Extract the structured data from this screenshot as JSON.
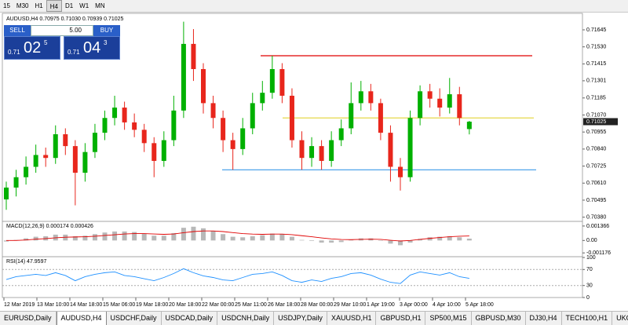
{
  "toolbar": {
    "timeframes": [
      "15",
      "M30",
      "H1",
      "H4",
      "D1",
      "W1",
      "MN"
    ],
    "active_index": 3
  },
  "trade_panel": {
    "sell": "SELL",
    "buy": "BUY",
    "volume": "5.00",
    "bid": {
      "big": "0.71",
      "pips": "02",
      "point": "5"
    },
    "ask": {
      "big": "0.71",
      "pips": "04",
      "point": "3"
    }
  },
  "chart_data": [
    {
      "type": "candlestick",
      "title": "AUDUSD,H4 0.70975 0.71030 0.70939 0.71025",
      "open": [
        0.705,
        0.7058,
        0.7065,
        0.7072,
        0.708,
        0.7078,
        0.7094,
        0.7086,
        0.7068,
        0.7082,
        0.7095,
        0.7105,
        0.7112,
        0.7102,
        0.7097,
        0.7088,
        0.7076,
        0.709,
        0.711,
        0.7155,
        0.7138,
        0.7115,
        0.7105,
        0.709,
        0.7084,
        0.7098,
        0.7115,
        0.7122,
        0.7138,
        0.712,
        0.709,
        0.7078,
        0.7086,
        0.7076,
        0.709,
        0.7098,
        0.7115,
        0.7123,
        0.7115,
        0.7095,
        0.7072,
        0.7065,
        0.7105,
        0.7123,
        0.7118,
        0.7112,
        0.7121,
        0.70975
      ],
      "high": [
        0.7062,
        0.707,
        0.7079,
        0.7087,
        0.7085,
        0.71,
        0.7098,
        0.709,
        0.7088,
        0.7101,
        0.711,
        0.712,
        0.7116,
        0.7108,
        0.7101,
        0.7092,
        0.7096,
        0.712,
        0.717,
        0.7165,
        0.7142,
        0.712,
        0.711,
        0.7095,
        0.7105,
        0.7122,
        0.713,
        0.7147,
        0.7142,
        0.7125,
        0.7096,
        0.7092,
        0.709,
        0.7096,
        0.7104,
        0.7129,
        0.713,
        0.7128,
        0.7118,
        0.71,
        0.7078,
        0.711,
        0.7127,
        0.7128,
        0.7125,
        0.7132,
        0.7126,
        0.7103
      ],
      "low": [
        0.7043,
        0.7052,
        0.706,
        0.7068,
        0.7072,
        0.7074,
        0.708,
        0.7046,
        0.7062,
        0.7078,
        0.709,
        0.71,
        0.7097,
        0.7092,
        0.7082,
        0.7065,
        0.7072,
        0.7086,
        0.7105,
        0.713,
        0.7108,
        0.7098,
        0.7082,
        0.707,
        0.708,
        0.7094,
        0.711,
        0.7118,
        0.7115,
        0.7085,
        0.707,
        0.7072,
        0.707,
        0.7072,
        0.7086,
        0.7094,
        0.711,
        0.711,
        0.709,
        0.7062,
        0.7056,
        0.7062,
        0.71,
        0.7112,
        0.7106,
        0.7108,
        0.71,
        0.70939
      ],
      "close": [
        0.7058,
        0.7065,
        0.7072,
        0.708,
        0.7078,
        0.7094,
        0.7086,
        0.7068,
        0.7082,
        0.7095,
        0.7105,
        0.7112,
        0.7102,
        0.7097,
        0.7088,
        0.7076,
        0.709,
        0.711,
        0.7155,
        0.7138,
        0.7115,
        0.7105,
        0.709,
        0.7084,
        0.7098,
        0.7115,
        0.7122,
        0.7138,
        0.712,
        0.709,
        0.7078,
        0.7086,
        0.7076,
        0.709,
        0.7098,
        0.7115,
        0.7123,
        0.7115,
        0.7095,
        0.7072,
        0.7065,
        0.7105,
        0.7123,
        0.7118,
        0.7112,
        0.7121,
        0.7105,
        0.71025
      ],
      "up_color": "#00b000",
      "down_color": "#e8261c",
      "ylim": [
        0.70357,
        0.71751
      ],
      "yticks": [
        0.71645,
        {
          "value": 0.7153,
          "label": "0.71530"
        },
        0.71415,
        0.71301,
        0.71185,
        {
          "value": 0.7107,
          "label": "0.71070"
        },
        0.70955,
        {
          "value": 0.7084,
          "label": "0.70840"
        },
        0.70725,
        {
          "value": 0.7061,
          "label": "0.70610"
        },
        0.70495,
        {
          "value": 0.7038,
          "label": "0.70380"
        }
      ],
      "current_price": 0.71025,
      "levels": [
        {
          "value": 0.7147,
          "color": "#e00000"
        },
        {
          "value": 0.7105,
          "color": "#e6d84a"
        },
        {
          "value": 0.707,
          "color": "#3a9ae8"
        }
      ],
      "x_labels": [
        "12 Mar 2019",
        "13 Mar 10:00",
        "14 Mar 18:00",
        "15 Mar 06:00",
        "19 Mar 18:00",
        "20 Mar 18:00",
        "22 Mar 00:00",
        "25 Mar 11:00",
        "26 Mar 18:00",
        "28 Mar 00:00",
        "29 Mar 10:00",
        "1 Apr 19:00",
        "3 Apr 00:00",
        "4 Apr 10:00",
        "5 Apr 18:00"
      ]
    },
    {
      "type": "macd",
      "title": "MACD(12,26,9) 0.000174 0.000426",
      "histogram": [
        -0.0001,
        5e-05,
        0.0002,
        0.00035,
        0.0004,
        0.00055,
        0.00055,
        0.0004,
        0.00045,
        0.0006,
        0.00075,
        0.00085,
        0.00085,
        0.0008,
        0.00065,
        0.00045,
        0.00045,
        0.0007,
        0.0012,
        0.0013,
        0.00115,
        0.0009,
        0.0006,
        0.00035,
        0.0003,
        0.0004,
        0.0005,
        0.00065,
        0.0006,
        0.00035,
        5e-05,
        -5e-05,
        -0.0002,
        -0.0002,
        -0.00015,
        5e-05,
        0.0002,
        0.0002,
        0,
        -0.0003,
        -0.00045,
        -0.0002,
        0.00015,
        0.0003,
        0.00035,
        0.0004,
        0.0003,
        0.000174
      ],
      "signal": [
        0,
        0,
        5e-05,
        0.00012,
        0.00018,
        0.00025,
        0.00031,
        0.00033,
        0.00035,
        0.0004,
        0.00047,
        0.00054,
        0.00061,
        0.00065,
        0.00065,
        0.00061,
        0.00058,
        0.00061,
        0.00073,
        0.00084,
        0.0009,
        0.0009,
        0.00084,
        0.00074,
        0.00065,
        0.0006,
        0.00058,
        0.0006,
        0.0006,
        0.00055,
        0.00045,
        0.00035,
        0.00024,
        0.00015,
        9e-05,
        8e-05,
        0.0001,
        0.00012,
        0.0001,
        2e-05,
        -5e-05,
        0,
        0.0001,
        0.0002,
        0.00028,
        0.00035,
        0.0004,
        0.000426
      ],
      "hist_color": "#b8b8b8",
      "signal_color": "#e00000",
      "ylim": [
        -0.00146,
        0.00173
      ],
      "yticks": [
        0.001366,
        {
          "value": 0,
          "label": "0.00"
        },
        -0.001176
      ]
    },
    {
      "type": "line",
      "title": "RSI(14) 47.9597",
      "values": [
        45,
        52,
        55,
        58,
        55,
        62,
        55,
        42,
        52,
        58,
        62,
        64,
        55,
        52,
        47,
        42,
        50,
        60,
        72,
        62,
        54,
        50,
        44,
        42,
        50,
        58,
        60,
        64,
        55,
        42,
        38,
        44,
        40,
        48,
        52,
        60,
        62,
        56,
        46,
        38,
        35,
        56,
        64,
        60,
        56,
        62,
        52,
        47.9597
      ],
      "color": "#1e90ff",
      "ylim": [
        0,
        100
      ],
      "yticks": [
        100,
        70,
        30,
        0
      ],
      "levels": [
        70,
        30
      ]
    }
  ],
  "tabs": {
    "items": [
      "EURUSD,Daily",
      "AUDUSD,H4",
      "USDCHF,Daily",
      "USDCAD,Daily",
      "USDCNH,Daily",
      "USDJPY,Daily",
      "XAUUSD,H1",
      "GBPUSD,H1",
      "SP500,M15",
      "GBPUSD,M30",
      "DJ30,H4",
      "TECH100,H1",
      "UKO"
    ],
    "active_index": 1
  }
}
